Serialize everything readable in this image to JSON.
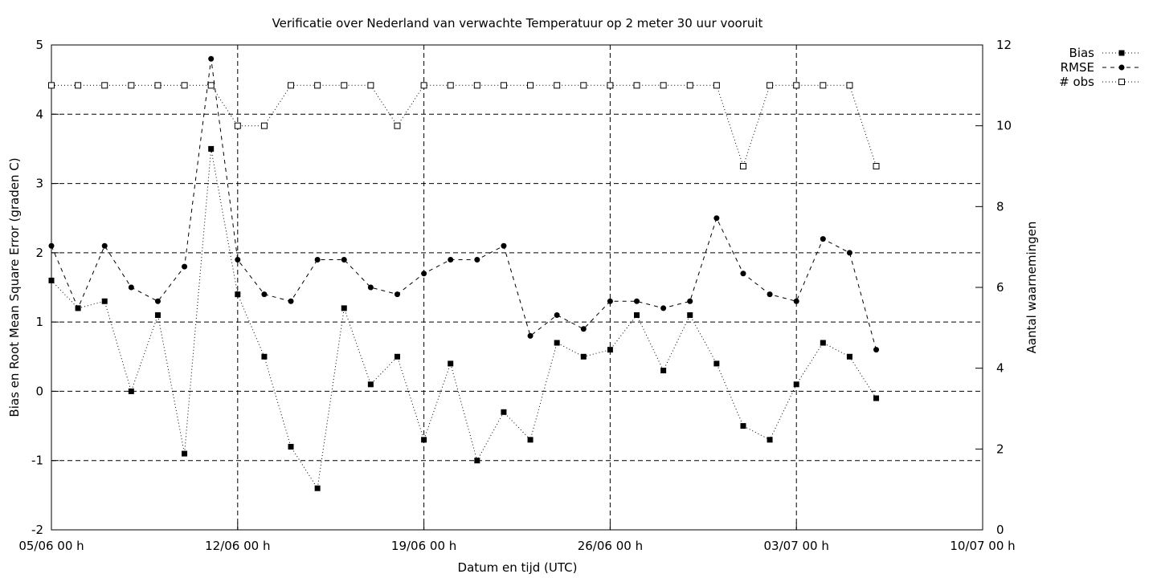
{
  "chart_data": {
    "type": "line",
    "title": "Verificatie over Nederland van verwachte Temperatuur op 2 meter 30 uur vooruit",
    "xlabel": "Datum en tijd (UTC)",
    "ylabel": "Bias en Root Mean Square Error (graden C)",
    "y2label": "Aantal waarnemingen",
    "x_ticks": [
      "05/06 00 h",
      "12/06 00 h",
      "19/06 00 h",
      "26/06 00 h",
      "03/07 00 h",
      "10/07 00 h"
    ],
    "y_ticks": [
      "-2",
      "-1",
      "0",
      "1",
      "2",
      "3",
      "4",
      "5"
    ],
    "y2_ticks": [
      "0",
      "2",
      "4",
      "6",
      "8",
      "10",
      "12"
    ],
    "ylim": [
      -2,
      5
    ],
    "y2lim": [
      0,
      12
    ],
    "grid": true,
    "legend_position": "top-right, outside",
    "x_days": [
      0,
      1,
      2,
      3,
      4,
      5,
      6,
      7,
      8,
      9,
      10,
      11,
      12,
      13,
      14,
      15,
      16,
      17,
      18,
      19,
      20,
      21,
      22,
      23,
      24,
      25,
      26,
      27,
      28,
      29,
      30,
      31
    ],
    "series": [
      {
        "name": "Bias",
        "axis": "left",
        "marker": "filled-square",
        "dash": "dotted",
        "values": [
          1.6,
          1.2,
          1.3,
          0.0,
          1.1,
          -0.9,
          3.5,
          1.4,
          0.5,
          -0.8,
          -1.4,
          1.2,
          0.1,
          0.5,
          -0.7,
          0.4,
          -1.0,
          -0.3,
          -0.7,
          0.7,
          0.5,
          0.6,
          1.1,
          0.3,
          1.1,
          0.4,
          -0.5,
          -0.7,
          0.1,
          0.7,
          0.5,
          -0.1
        ]
      },
      {
        "name": "RMSE",
        "axis": "left",
        "marker": "filled-circle",
        "dash": "dashed",
        "values": [
          2.1,
          1.2,
          2.1,
          1.5,
          1.3,
          1.8,
          4.8,
          1.9,
          1.4,
          1.3,
          1.9,
          1.9,
          1.5,
          1.4,
          1.7,
          1.9,
          1.9,
          2.1,
          0.8,
          1.1,
          0.9,
          1.3,
          1.3,
          1.2,
          1.3,
          2.5,
          1.7,
          1.4,
          1.3,
          2.2,
          2.0,
          0.6
        ]
      },
      {
        "name": "# obs",
        "axis": "right",
        "marker": "open-square",
        "dash": "dotted",
        "values": [
          11,
          11,
          11,
          11,
          11,
          11,
          11,
          10,
          10,
          11,
          11,
          11,
          11,
          10,
          11,
          11,
          11,
          11,
          11,
          11,
          11,
          11,
          11,
          11,
          11,
          11,
          9,
          11,
          11,
          11,
          11,
          9
        ]
      }
    ],
    "colors": {
      "line": "#000000",
      "grid": "#000000",
      "background": "#ffffff"
    }
  }
}
